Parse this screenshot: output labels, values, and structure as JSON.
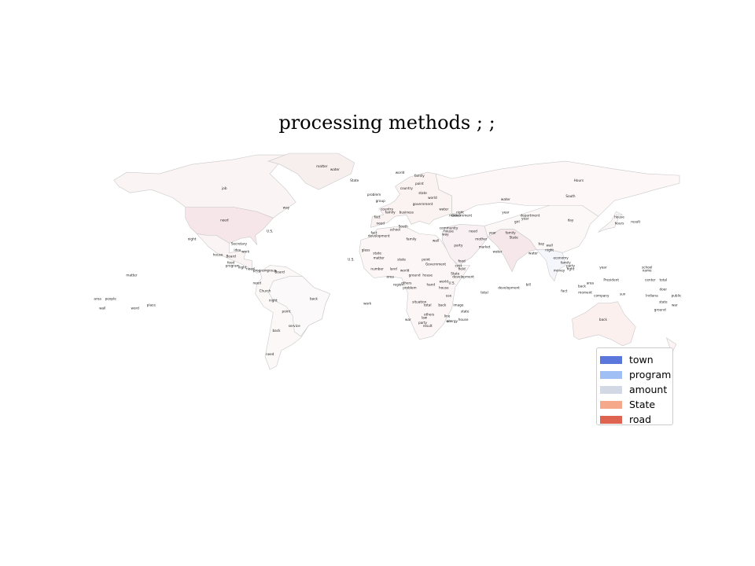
{
  "title": "processing methods ; ;",
  "colors": {
    "background": "#ffffff",
    "land_base": "#fdf7f7",
    "border": "#c9c9c9",
    "label": "#222222"
  },
  "legend": {
    "items": [
      {
        "label": "town",
        "color": "#5b77db"
      },
      {
        "label": "program",
        "color": "#a0bff5"
      },
      {
        "label": "amount",
        "color": "#d2d8e4"
      },
      {
        "label": "State",
        "color": "#f5a98a"
      },
      {
        "label": "road",
        "color": "#de6350"
      }
    ]
  },
  "map": {
    "regions": [
      {
        "name": "north-america",
        "fill": "#fbf4f4"
      },
      {
        "name": "greenland",
        "fill": "#f7eeee"
      },
      {
        "name": "united-states",
        "fill": "#f6e6ea"
      },
      {
        "name": "central-america",
        "fill": "#fbf4f4"
      },
      {
        "name": "south-america",
        "fill": "#fcf8f8"
      },
      {
        "name": "brazil",
        "fill": "#fbf9fa"
      },
      {
        "name": "europe",
        "fill": "#fbf2f2"
      },
      {
        "name": "africa",
        "fill": "#fcf6f6"
      },
      {
        "name": "russia",
        "fill": "#fdf7f7"
      },
      {
        "name": "middle-east",
        "fill": "#f8f0f2"
      },
      {
        "name": "india",
        "fill": "#f6e8ea"
      },
      {
        "name": "asia",
        "fill": "#fdf8f8"
      },
      {
        "name": "southeast-asia",
        "fill": "#f5f6fb"
      },
      {
        "name": "australia",
        "fill": "#fbf0ee"
      },
      {
        "name": "japan",
        "fill": "#fbf6f6"
      },
      {
        "name": "new-zealand",
        "fill": "#fcf4f4"
      }
    ],
    "labels": [
      {
        "text": "matter",
        "lon": -40,
        "lat": 74
      },
      {
        "text": "job",
        "lon": -100,
        "lat": 60
      },
      {
        "text": "need",
        "lon": -100,
        "lat": 40
      },
      {
        "text": "U.S.",
        "lon": -72,
        "lat": 33
      },
      {
        "text": "way",
        "lon": -62,
        "lat": 48
      },
      {
        "text": "night",
        "lon": -120,
        "lat": 28
      },
      {
        "text": "Secretary",
        "lon": -91,
        "lat": 25
      },
      {
        "text": "idea",
        "lon": -92,
        "lat": 21
      },
      {
        "text": "work",
        "lon": -87,
        "lat": 20
      },
      {
        "text": "house",
        "lon": -104,
        "lat": 18
      },
      {
        "text": "Board",
        "lon": -96,
        "lat": 17
      },
      {
        "text": "food",
        "lon": -96,
        "lat": 13
      },
      {
        "text": "program",
        "lon": -95,
        "lat": 11
      },
      {
        "text": "night",
        "lon": -89,
        "lat": 10
      },
      {
        "text": "need",
        "lon": -84,
        "lat": 9
      },
      {
        "text": "program",
        "lon": -78,
        "lat": 8
      },
      {
        "text": "group",
        "lon": -71,
        "lat": 8
      },
      {
        "text": "Board",
        "lon": -66,
        "lat": 7
      },
      {
        "text": "matter",
        "lon": -157,
        "lat": 5
      },
      {
        "text": "need",
        "lon": -80,
        "lat": 0
      },
      {
        "text": "Church",
        "lon": -75,
        "lat": -5
      },
      {
        "text": "back",
        "lon": -45,
        "lat": -10
      },
      {
        "text": "night",
        "lon": -70,
        "lat": -11
      },
      {
        "text": "point",
        "lon": -62,
        "lat": -18
      },
      {
        "text": "service",
        "lon": -57,
        "lat": -27
      },
      {
        "text": "back",
        "lon": -68,
        "lat": -30
      },
      {
        "text": "need",
        "lon": -72,
        "lat": -45
      },
      {
        "text": "area",
        "lon": -178,
        "lat": -10
      },
      {
        "text": "people",
        "lon": -170,
        "lat": -10
      },
      {
        "text": "wall",
        "lon": -175,
        "lat": -16
      },
      {
        "text": "word",
        "lon": -155,
        "lat": -16
      },
      {
        "text": "place",
        "lon": -145,
        "lat": -14
      },
      {
        "text": "State",
        "lon": -20,
        "lat": 65
      },
      {
        "text": "water",
        "lon": -32,
        "lat": 72
      },
      {
        "text": "world",
        "lon": 8,
        "lat": 70
      },
      {
        "text": "family",
        "lon": 20,
        "lat": 68
      },
      {
        "text": "point",
        "lon": 20,
        "lat": 63
      },
      {
        "text": "country",
        "lon": 12,
        "lat": 60
      },
      {
        "text": "state",
        "lon": 22,
        "lat": 57
      },
      {
        "text": "world",
        "lon": 28,
        "lat": 54
      },
      {
        "text": "problem",
        "lon": -8,
        "lat": 56
      },
      {
        "text": "group",
        "lon": -4,
        "lat": 52
      },
      {
        "text": "country",
        "lon": 0,
        "lat": 47
      },
      {
        "text": "government",
        "lon": 22,
        "lat": 50
      },
      {
        "text": "water",
        "lon": 35,
        "lat": 47
      },
      {
        "text": "family",
        "lon": 2,
        "lat": 45
      },
      {
        "text": "business",
        "lon": 12,
        "lat": 45
      },
      {
        "text": "mother",
        "lon": 42,
        "lat": 43
      },
      {
        "text": "fact",
        "lon": -6,
        "lat": 42
      },
      {
        "text": "need",
        "lon": -4,
        "lat": 38
      },
      {
        "text": "right",
        "lon": 45,
        "lat": 45
      },
      {
        "text": "Government",
        "lon": 46,
        "lat": 43
      },
      {
        "text": "South",
        "lon": 10,
        "lat": 36
      },
      {
        "text": "school",
        "lon": 5,
        "lat": 34
      },
      {
        "text": "fact",
        "lon": -8,
        "lat": 32
      },
      {
        "text": "development",
        "lon": -5,
        "lat": 30
      },
      {
        "text": "family",
        "lon": 15,
        "lat": 28
      },
      {
        "text": "community",
        "lon": 38,
        "lat": 35
      },
      {
        "text": "house",
        "lon": 38,
        "lat": 33
      },
      {
        "text": "way",
        "lon": 36,
        "lat": 31
      },
      {
        "text": "need",
        "lon": 53,
        "lat": 33
      },
      {
        "text": "year",
        "lon": 65,
        "lat": 32
      },
      {
        "text": "wall",
        "lon": 30,
        "lat": 27
      },
      {
        "text": "party",
        "lon": 44,
        "lat": 24
      },
      {
        "text": "mother",
        "lon": 58,
        "lat": 28
      },
      {
        "text": "market",
        "lon": 60,
        "lat": 23
      },
      {
        "text": "water",
        "lon": 68,
        "lat": 20
      },
      {
        "text": "family",
        "lon": 76,
        "lat": 32
      },
      {
        "text": "State",
        "lon": 78,
        "lat": 29
      },
      {
        "text": "girl",
        "lon": 80,
        "lat": 39
      },
      {
        "text": "water",
        "lon": 73,
        "lat": 53
      },
      {
        "text": "Hours",
        "lon": 118,
        "lat": 65
      },
      {
        "text": "South",
        "lon": 113,
        "lat": 55
      },
      {
        "text": "year",
        "lon": 73,
        "lat": 45
      },
      {
        "text": "department",
        "lon": 88,
        "lat": 43
      },
      {
        "text": "year",
        "lon": 85,
        "lat": 41
      },
      {
        "text": "day",
        "lon": 113,
        "lat": 40
      },
      {
        "text": "house",
        "lon": 143,
        "lat": 42
      },
      {
        "text": "hours",
        "lon": 143,
        "lat": 38
      },
      {
        "text": "result",
        "lon": 153,
        "lat": 39
      },
      {
        "text": "bay",
        "lon": 95,
        "lat": 25
      },
      {
        "text": "wall",
        "lon": 100,
        "lat": 24
      },
      {
        "text": "night",
        "lon": 100,
        "lat": 21
      },
      {
        "text": "water",
        "lon": 90,
        "lat": 19
      },
      {
        "text": "economy",
        "lon": 107,
        "lat": 16
      },
      {
        "text": "family",
        "lon": 110,
        "lat": 13
      },
      {
        "text": "party",
        "lon": 113,
        "lat": 11
      },
      {
        "text": "money",
        "lon": 106,
        "lat": 8
      },
      {
        "text": "fight",
        "lon": 113,
        "lat": 9
      },
      {
        "text": "year",
        "lon": 133,
        "lat": 10
      },
      {
        "text": "school",
        "lon": 160,
        "lat": 10
      },
      {
        "text": "name",
        "lon": 160,
        "lat": 8
      },
      {
        "text": "President",
        "lon": 138,
        "lat": 2
      },
      {
        "text": "center",
        "lon": 162,
        "lat": 2
      },
      {
        "text": "total",
        "lon": 170,
        "lat": 2
      },
      {
        "text": "area",
        "lon": 125,
        "lat": 0
      },
      {
        "text": "back",
        "lon": 120,
        "lat": -2
      },
      {
        "text": "door",
        "lon": 170,
        "lat": -4
      },
      {
        "text": "bill",
        "lon": 87,
        "lat": -1
      },
      {
        "text": "fact",
        "lon": 109,
        "lat": -5
      },
      {
        "text": "moment",
        "lon": 122,
        "lat": -6
      },
      {
        "text": "company",
        "lon": 132,
        "lat": -8
      },
      {
        "text": "sun",
        "lon": 145,
        "lat": -7
      },
      {
        "text": "Indiana",
        "lon": 163,
        "lat": -8
      },
      {
        "text": "public",
        "lon": 178,
        "lat": -8
      },
      {
        "text": "state",
        "lon": 170,
        "lat": -12
      },
      {
        "text": "war",
        "lon": 177,
        "lat": -14
      },
      {
        "text": "ground",
        "lon": 168,
        "lat": -17
      },
      {
        "text": "back",
        "lon": 133,
        "lat": -23
      },
      {
        "text": "development",
        "lon": 75,
        "lat": -3
      },
      {
        "text": "total",
        "lon": 60,
        "lat": -6
      },
      {
        "text": "U.S.",
        "lon": -22,
        "lat": 15
      },
      {
        "text": "glass",
        "lon": -13,
        "lat": 21
      },
      {
        "text": "state",
        "lon": -6,
        "lat": 19
      },
      {
        "text": "matter",
        "lon": -5,
        "lat": 16
      },
      {
        "text": "state",
        "lon": 9,
        "lat": 15
      },
      {
        "text": "point",
        "lon": 24,
        "lat": 15
      },
      {
        "text": "Government",
        "lon": 30,
        "lat": 12
      },
      {
        "text": "food",
        "lon": 46,
        "lat": 14
      },
      {
        "text": "cost",
        "lon": 44,
        "lat": 11
      },
      {
        "text": "field",
        "lon": 46,
        "lat": 9
      },
      {
        "text": "State",
        "lon": 42,
        "lat": 6
      },
      {
        "text": "development",
        "lon": 47,
        "lat": 4
      },
      {
        "text": "world",
        "lon": 35,
        "lat": 1
      },
      {
        "text": "U.S.",
        "lon": 40,
        "lat": 0
      },
      {
        "text": "hand",
        "lon": 27,
        "lat": -1
      },
      {
        "text": "house",
        "lon": 35,
        "lat": -3
      },
      {
        "text": "others",
        "lon": 12,
        "lat": 0
      },
      {
        "text": "region",
        "lon": 7,
        "lat": -1
      },
      {
        "text": "problem",
        "lon": 14,
        "lat": -3
      },
      {
        "text": "area",
        "lon": 2,
        "lat": 4
      },
      {
        "text": "ground",
        "lon": 17,
        "lat": 5
      },
      {
        "text": "house",
        "lon": 25,
        "lat": 5
      },
      {
        "text": "land",
        "lon": 4,
        "lat": 9
      },
      {
        "text": "world",
        "lon": 11,
        "lat": 8
      },
      {
        "text": "number",
        "lon": -6,
        "lat": 9
      },
      {
        "text": "use",
        "lon": 38,
        "lat": -8
      },
      {
        "text": "situation",
        "lon": 20,
        "lat": -12
      },
      {
        "text": "total",
        "lon": 25,
        "lat": -14
      },
      {
        "text": "back",
        "lon": 34,
        "lat": -14
      },
      {
        "text": "image",
        "lon": 44,
        "lat": -14
      },
      {
        "text": "state",
        "lon": 48,
        "lat": -18
      },
      {
        "text": "others",
        "lon": 26,
        "lat": -20
      },
      {
        "text": "law",
        "lon": 23,
        "lat": -22
      },
      {
        "text": "line",
        "lon": 37,
        "lat": -21
      },
      {
        "text": "air",
        "lon": 38,
        "lat": -24
      },
      {
        "text": "war",
        "lon": 13,
        "lat": -23
      },
      {
        "text": "party",
        "lon": 22,
        "lat": -25
      },
      {
        "text": "result",
        "lon": 25,
        "lat": -27
      },
      {
        "text": "energy",
        "lon": 40,
        "lat": -24
      },
      {
        "text": "house",
        "lon": 47,
        "lat": -23
      },
      {
        "text": "work",
        "lon": -12,
        "lat": -13
      }
    ]
  }
}
